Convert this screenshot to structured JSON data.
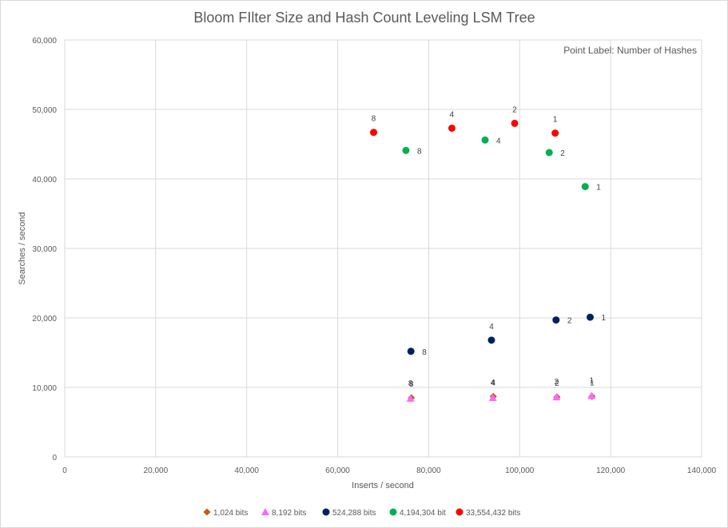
{
  "chart_data": {
    "type": "scatter",
    "title": "Bloom FIlter Size and Hash Count Leveling LSM Tree",
    "xlabel": "Inserts / second",
    "ylabel": "Searches / second",
    "xlim": [
      0,
      140000
    ],
    "ylim": [
      0,
      60000
    ],
    "x_ticks": [
      0,
      20000,
      40000,
      60000,
      80000,
      100000,
      120000,
      140000
    ],
    "x_tick_labels": [
      "0",
      "20,000",
      "40,000",
      "60,000",
      "80,000",
      "100,000",
      "120,000",
      "140,000"
    ],
    "y_ticks": [
      0,
      10000,
      20000,
      30000,
      40000,
      50000,
      60000
    ],
    "y_tick_labels": [
      "0",
      "10,000",
      "20,000",
      "30,000",
      "40,000",
      "50,000",
      "60,000"
    ],
    "grid": true,
    "legend_position": "bottom",
    "annotation": "Point Label: Number of Hashes",
    "series": [
      {
        "name": "1,024 bits",
        "marker": "diamond",
        "color": "#c55a11",
        "points": [
          {
            "x": 76200,
            "y": 8500,
            "label": "8"
          },
          {
            "x": 94200,
            "y": 8700,
            "label": "4"
          },
          {
            "x": 108200,
            "y": 8600,
            "label": "2"
          },
          {
            "x": 115900,
            "y": 8700,
            "label": "1"
          }
        ]
      },
      {
        "name": "8,192 bits",
        "marker": "triangle",
        "color": "#ff66ff",
        "points": [
          {
            "x": 76000,
            "y": 8400,
            "label": "8"
          },
          {
            "x": 94100,
            "y": 8500,
            "label": "4"
          },
          {
            "x": 108100,
            "y": 8600,
            "label": "2"
          },
          {
            "x": 115800,
            "y": 8800,
            "label": "1"
          }
        ]
      },
      {
        "name": "524,288 bits",
        "marker": "circle",
        "color": "#002060",
        "points": [
          {
            "x": 76100,
            "y": 15200,
            "label": "8"
          },
          {
            "x": 93800,
            "y": 16800,
            "label": "4"
          },
          {
            "x": 108000,
            "y": 19700,
            "label": "2"
          },
          {
            "x": 115500,
            "y": 20100,
            "label": "1"
          }
        ]
      },
      {
        "name": "4,194,304 bit",
        "marker": "circle",
        "color": "#00b050",
        "points": [
          {
            "x": 75000,
            "y": 44100,
            "label": "8"
          },
          {
            "x": 92400,
            "y": 45600,
            "label": "4"
          },
          {
            "x": 106500,
            "y": 43800,
            "label": "2"
          },
          {
            "x": 114400,
            "y": 38900,
            "label": "1"
          }
        ]
      },
      {
        "name": "33,554,432 bits",
        "marker": "circle",
        "color": "#ff0000",
        "points": [
          {
            "x": 67900,
            "y": 46700,
            "label": "8"
          },
          {
            "x": 85100,
            "y": 47300,
            "label": "4"
          },
          {
            "x": 98900,
            "y": 48000,
            "label": "2"
          },
          {
            "x": 107800,
            "y": 46600,
            "label": "1"
          }
        ]
      }
    ]
  }
}
